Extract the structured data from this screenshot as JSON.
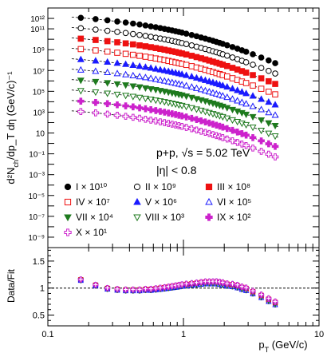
{
  "chart_data": [
    {
      "type": "scatter",
      "panel": "spectra",
      "xscale": "log",
      "yscale": "log",
      "xlim": [
        0.1,
        10
      ],
      "ylim": [
        1e-10,
        10000000000000.0
      ],
      "ylabel": "d²N_ch/dp_T dη (GeV/c)⁻¹",
      "y_ticks_major": [
        "10¹²",
        "10¹¹",
        "10⁹",
        "10⁷",
        "10⁵",
        "10³",
        "10",
        "10⁻¹",
        "10⁻³",
        "10⁻⁵",
        "10⁻⁷",
        "10⁻⁹"
      ],
      "y_ticks_major_values": [
        1000000000000.0,
        100000000000.0,
        1000000000.0,
        10000000.0,
        100000.0,
        1000.0,
        10,
        0.1,
        0.001,
        1e-05,
        1e-07,
        1e-09
      ],
      "annotations": [
        "p+p, √s = 5.02 TeV",
        "|η| < 0.8"
      ],
      "legend_placement": "bottom-left, three columns",
      "fit_curves": "dashed lines through each series",
      "x": [
        0.175,
        0.225,
        0.275,
        0.325,
        0.375,
        0.425,
        0.475,
        0.525,
        0.575,
        0.625,
        0.675,
        0.725,
        0.775,
        0.825,
        0.875,
        0.925,
        0.975,
        1.05,
        1.15,
        1.25,
        1.35,
        1.45,
        1.55,
        1.65,
        1.75,
        1.85,
        1.95,
        2.1,
        2.3,
        2.5,
        2.7,
        2.9,
        3.25,
        3.75,
        4.25,
        4.75
      ],
      "series": [
        {
          "name": "I × 10¹⁰",
          "marker": "filled-circle",
          "color": "#000000",
          "scale": 10000000000.0,
          "y_at_0.175": 220000000000.0,
          "y_at_1": 40000000000.0,
          "y_at_4.75": 300000000.0
        },
        {
          "name": "II × 10⁹",
          "marker": "open-circle",
          "color": "#000000",
          "scale": 1000000000.0,
          "y_at_0.175": 22000000000.0,
          "y_at_1": 4000000000.0,
          "y_at_4.75": 30000000.0
        },
        {
          "name": "III × 10⁸",
          "marker": "filled-square",
          "color": "#ee1111",
          "scale": 100000000.0,
          "y_at_0.175": 2200000000.0,
          "y_at_1": 400000000.0,
          "y_at_4.75": 3000000.0
        },
        {
          "name": "IV × 10⁷",
          "marker": "open-square",
          "color": "#ee1111",
          "scale": 10000000.0,
          "y_at_0.175": 220000000.0,
          "y_at_1": 40000000.0,
          "y_at_4.75": 300000.0
        },
        {
          "name": "V × 10⁶",
          "marker": "filled-triangle",
          "color": "#1a1aff",
          "scale": 1000000.0,
          "y_at_0.175": 22000000.0,
          "y_at_1": 4000000.0,
          "y_at_4.75": 30000.0
        },
        {
          "name": "VI × 10⁵",
          "marker": "open-triangle",
          "color": "#1a1aff",
          "scale": 100000.0,
          "y_at_0.175": 2200000.0,
          "y_at_1": 400000.0,
          "y_at_4.75": 3000.0
        },
        {
          "name": "VII × 10⁴",
          "marker": "filled-triangle-down",
          "color": "#1e7a1e",
          "scale": 10000.0,
          "y_at_0.175": 220000.0,
          "y_at_1": 40000.0,
          "y_at_4.75": 300.0
        },
        {
          "name": "VIII × 10³",
          "marker": "open-triangle-down",
          "color": "#1e7a1e",
          "scale": 1000.0,
          "y_at_0.175": 22000.0,
          "y_at_1": 4000.0,
          "y_at_4.75": 30.0
        },
        {
          "name": "IX × 10²",
          "marker": "filled-cross",
          "color": "#cc22cc",
          "scale": 100.0,
          "y_at_0.175": 2200.0,
          "y_at_1": 400.0,
          "y_at_4.75": 3
        },
        {
          "name": "X × 10¹",
          "marker": "open-cross",
          "color": "#cc22cc",
          "scale": 10,
          "y_at_0.175": 220.0,
          "y_at_1": 40.0,
          "y_at_4.75": 0.3
        }
      ]
    },
    {
      "type": "scatter",
      "panel": "ratio",
      "xscale": "log",
      "xlim": [
        0.1,
        10
      ],
      "ylim": [
        0.3,
        1.75
      ],
      "xlabel": "p_T (GeV/c)",
      "ylabel": "Data/Fit",
      "x_ticks": [
        "0.1",
        "1",
        "10"
      ],
      "x_ticks_values": [
        0.1,
        1,
        10
      ],
      "y_ticks": [
        "1.5",
        "1",
        "0.5"
      ],
      "y_ticks_values": [
        1.5,
        1,
        0.5
      ],
      "reference_line": {
        "y": 1,
        "style": "dashed"
      },
      "x": [
        0.175,
        0.225,
        0.275,
        0.325,
        0.375,
        0.425,
        0.475,
        0.525,
        0.575,
        0.625,
        0.675,
        0.725,
        0.775,
        0.825,
        0.875,
        0.925,
        0.975,
        1.05,
        1.15,
        1.25,
        1.35,
        1.45,
        1.55,
        1.65,
        1.75,
        1.85,
        1.95,
        2.1,
        2.3,
        2.5,
        2.7,
        2.9,
        3.25,
        3.75,
        4.25,
        4.75
      ],
      "ratio": [
        1.15,
        1.05,
        0.99,
        0.97,
        0.96,
        0.96,
        0.96,
        0.97,
        0.97,
        0.98,
        0.99,
        1.0,
        1.01,
        1.02,
        1.03,
        1.04,
        1.05,
        1.06,
        1.07,
        1.08,
        1.09,
        1.1,
        1.1,
        1.1,
        1.1,
        1.09,
        1.08,
        1.06,
        1.05,
        1.03,
        1.0,
        0.98,
        0.92,
        0.85,
        0.78,
        0.72
      ]
    }
  ]
}
